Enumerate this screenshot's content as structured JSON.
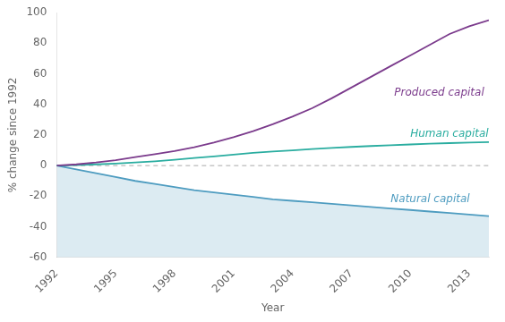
{
  "chart_data": {
    "type": "line",
    "x": [
      1992,
      1993,
      1994,
      1995,
      1996,
      1997,
      1998,
      1999,
      2000,
      2001,
      2002,
      2003,
      2004,
      2005,
      2006,
      2007,
      2008,
      2009,
      2010,
      2011,
      2012,
      2013,
      2014
    ],
    "series": [
      {
        "name": "Produced capital",
        "color": "#7B3B8C",
        "values": [
          0,
          0.8,
          2.0,
          3.5,
          5.5,
          7.5,
          9.5,
          12,
          15,
          18.5,
          22.5,
          27,
          32,
          37.5,
          44,
          51,
          58,
          65,
          72,
          79,
          86,
          91,
          95
        ]
      },
      {
        "name": "Human capital",
        "color": "#2AADA0",
        "values": [
          0,
          0.3,
          0.8,
          1.3,
          2.0,
          2.8,
          3.8,
          5.0,
          6.0,
          7.2,
          8.3,
          9.2,
          10.0,
          10.8,
          11.5,
          12.2,
          12.8,
          13.3,
          13.8,
          14.3,
          14.7,
          15.0,
          15.3
        ]
      },
      {
        "name": "Natural capital",
        "color": "#4E9CC0",
        "values": [
          0,
          -2.5,
          -5,
          -7.5,
          -10,
          -12,
          -14,
          -16,
          -17.5,
          -19,
          -20.5,
          -22,
          -23,
          -24,
          -25,
          -26,
          -27,
          -28,
          -29,
          -30,
          -31,
          -32,
          -33
        ]
      }
    ],
    "xlabel": "Year",
    "ylabel": "% change since 1992",
    "xlim": [
      1992,
      2014
    ],
    "xticks": [
      1992,
      1995,
      1998,
      2001,
      2004,
      2007,
      2010,
      2013
    ],
    "ylim": [
      -60,
      100
    ],
    "yticks": [
      -60,
      -40,
      -20,
      0,
      20,
      40,
      60,
      80,
      100
    ],
    "grid": false
  }
}
